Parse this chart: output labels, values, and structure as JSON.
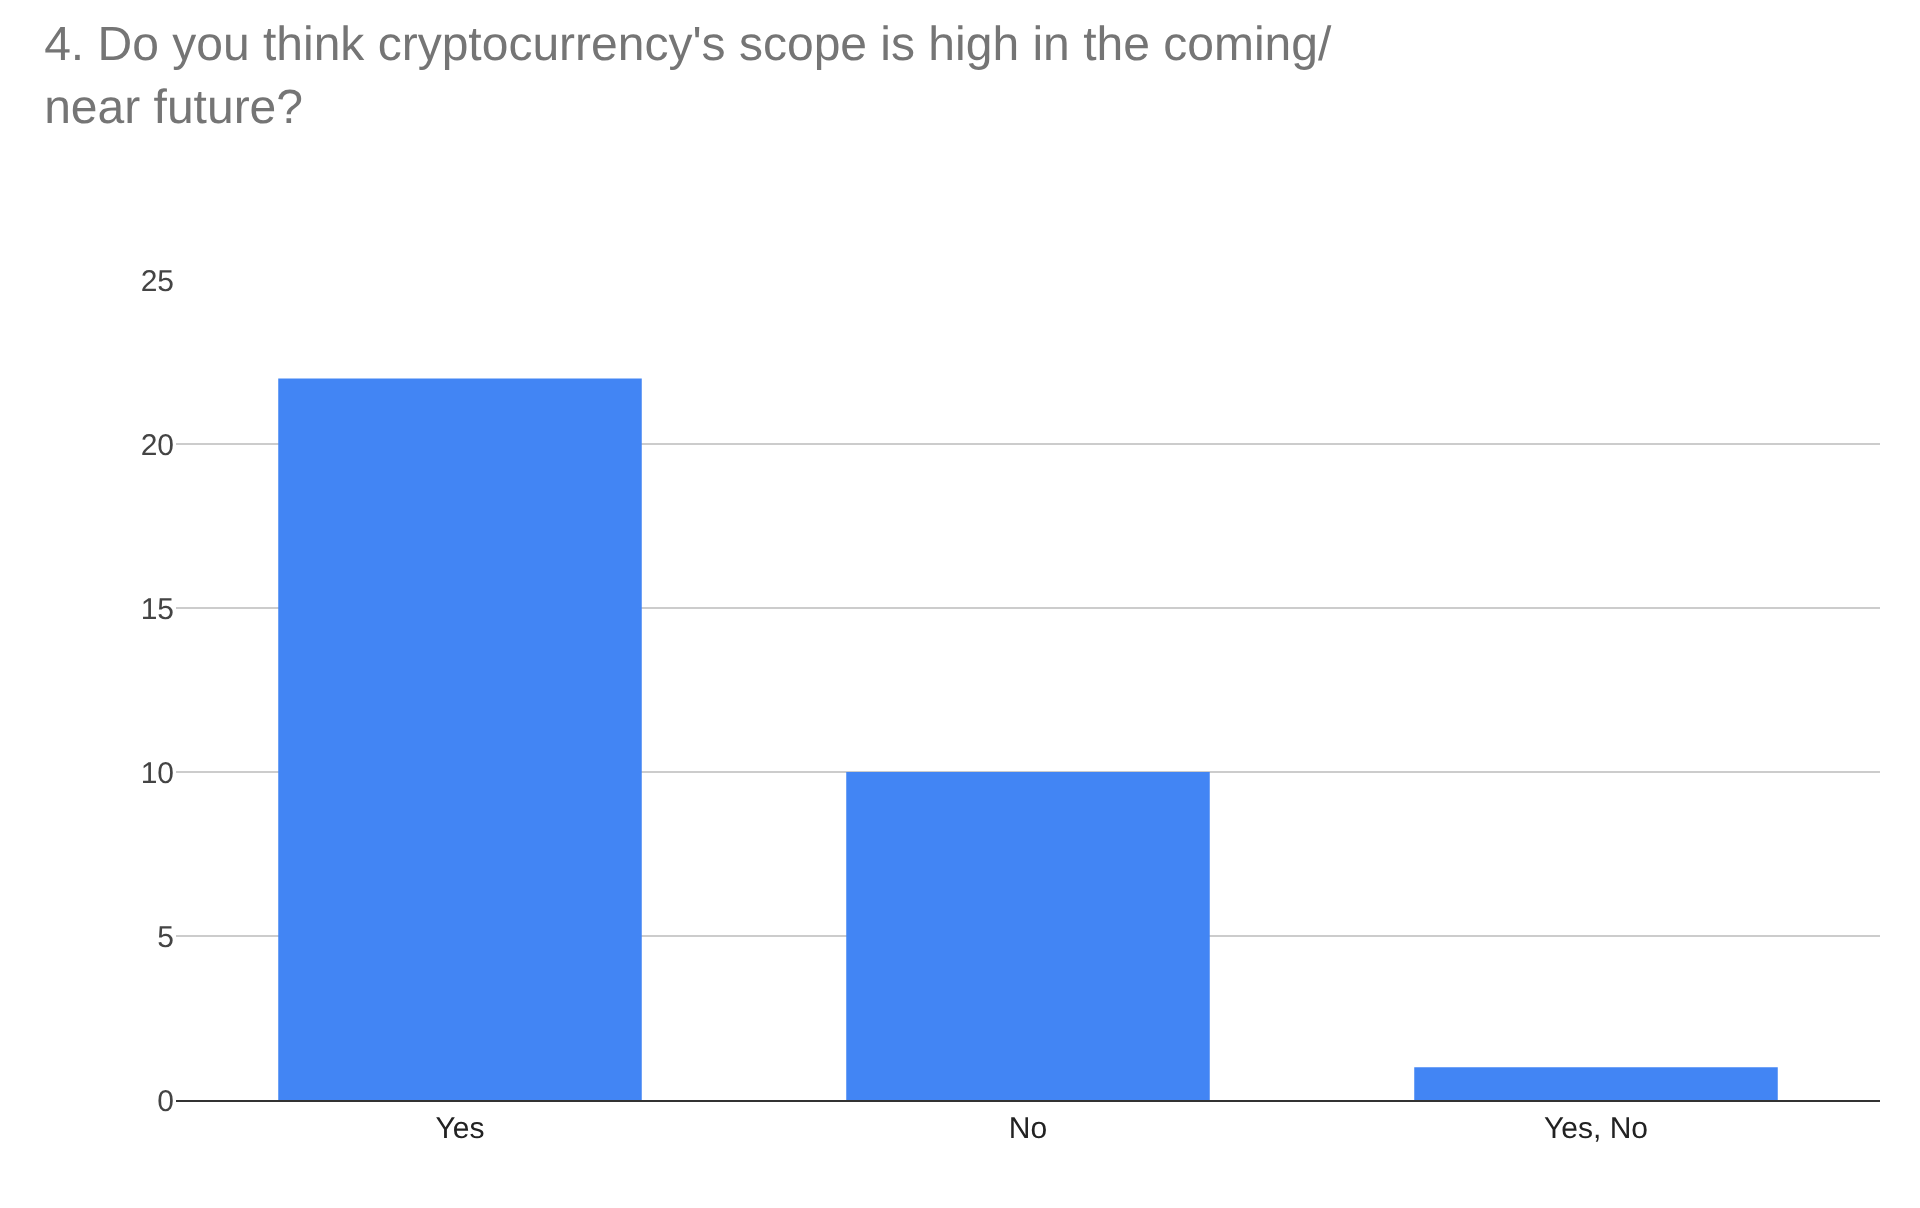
{
  "chart_data": {
    "type": "bar",
    "title": "4. Do you think cryptocurrency's scope is high in the coming/\nnear future?",
    "categories": [
      "Yes",
      "No",
      "Yes, No"
    ],
    "values": [
      22,
      10,
      1
    ],
    "color": "#4285f4",
    "ylim": [
      0,
      25
    ],
    "yticks": [
      0,
      5,
      10,
      15,
      20,
      25
    ],
    "grid": "y"
  }
}
